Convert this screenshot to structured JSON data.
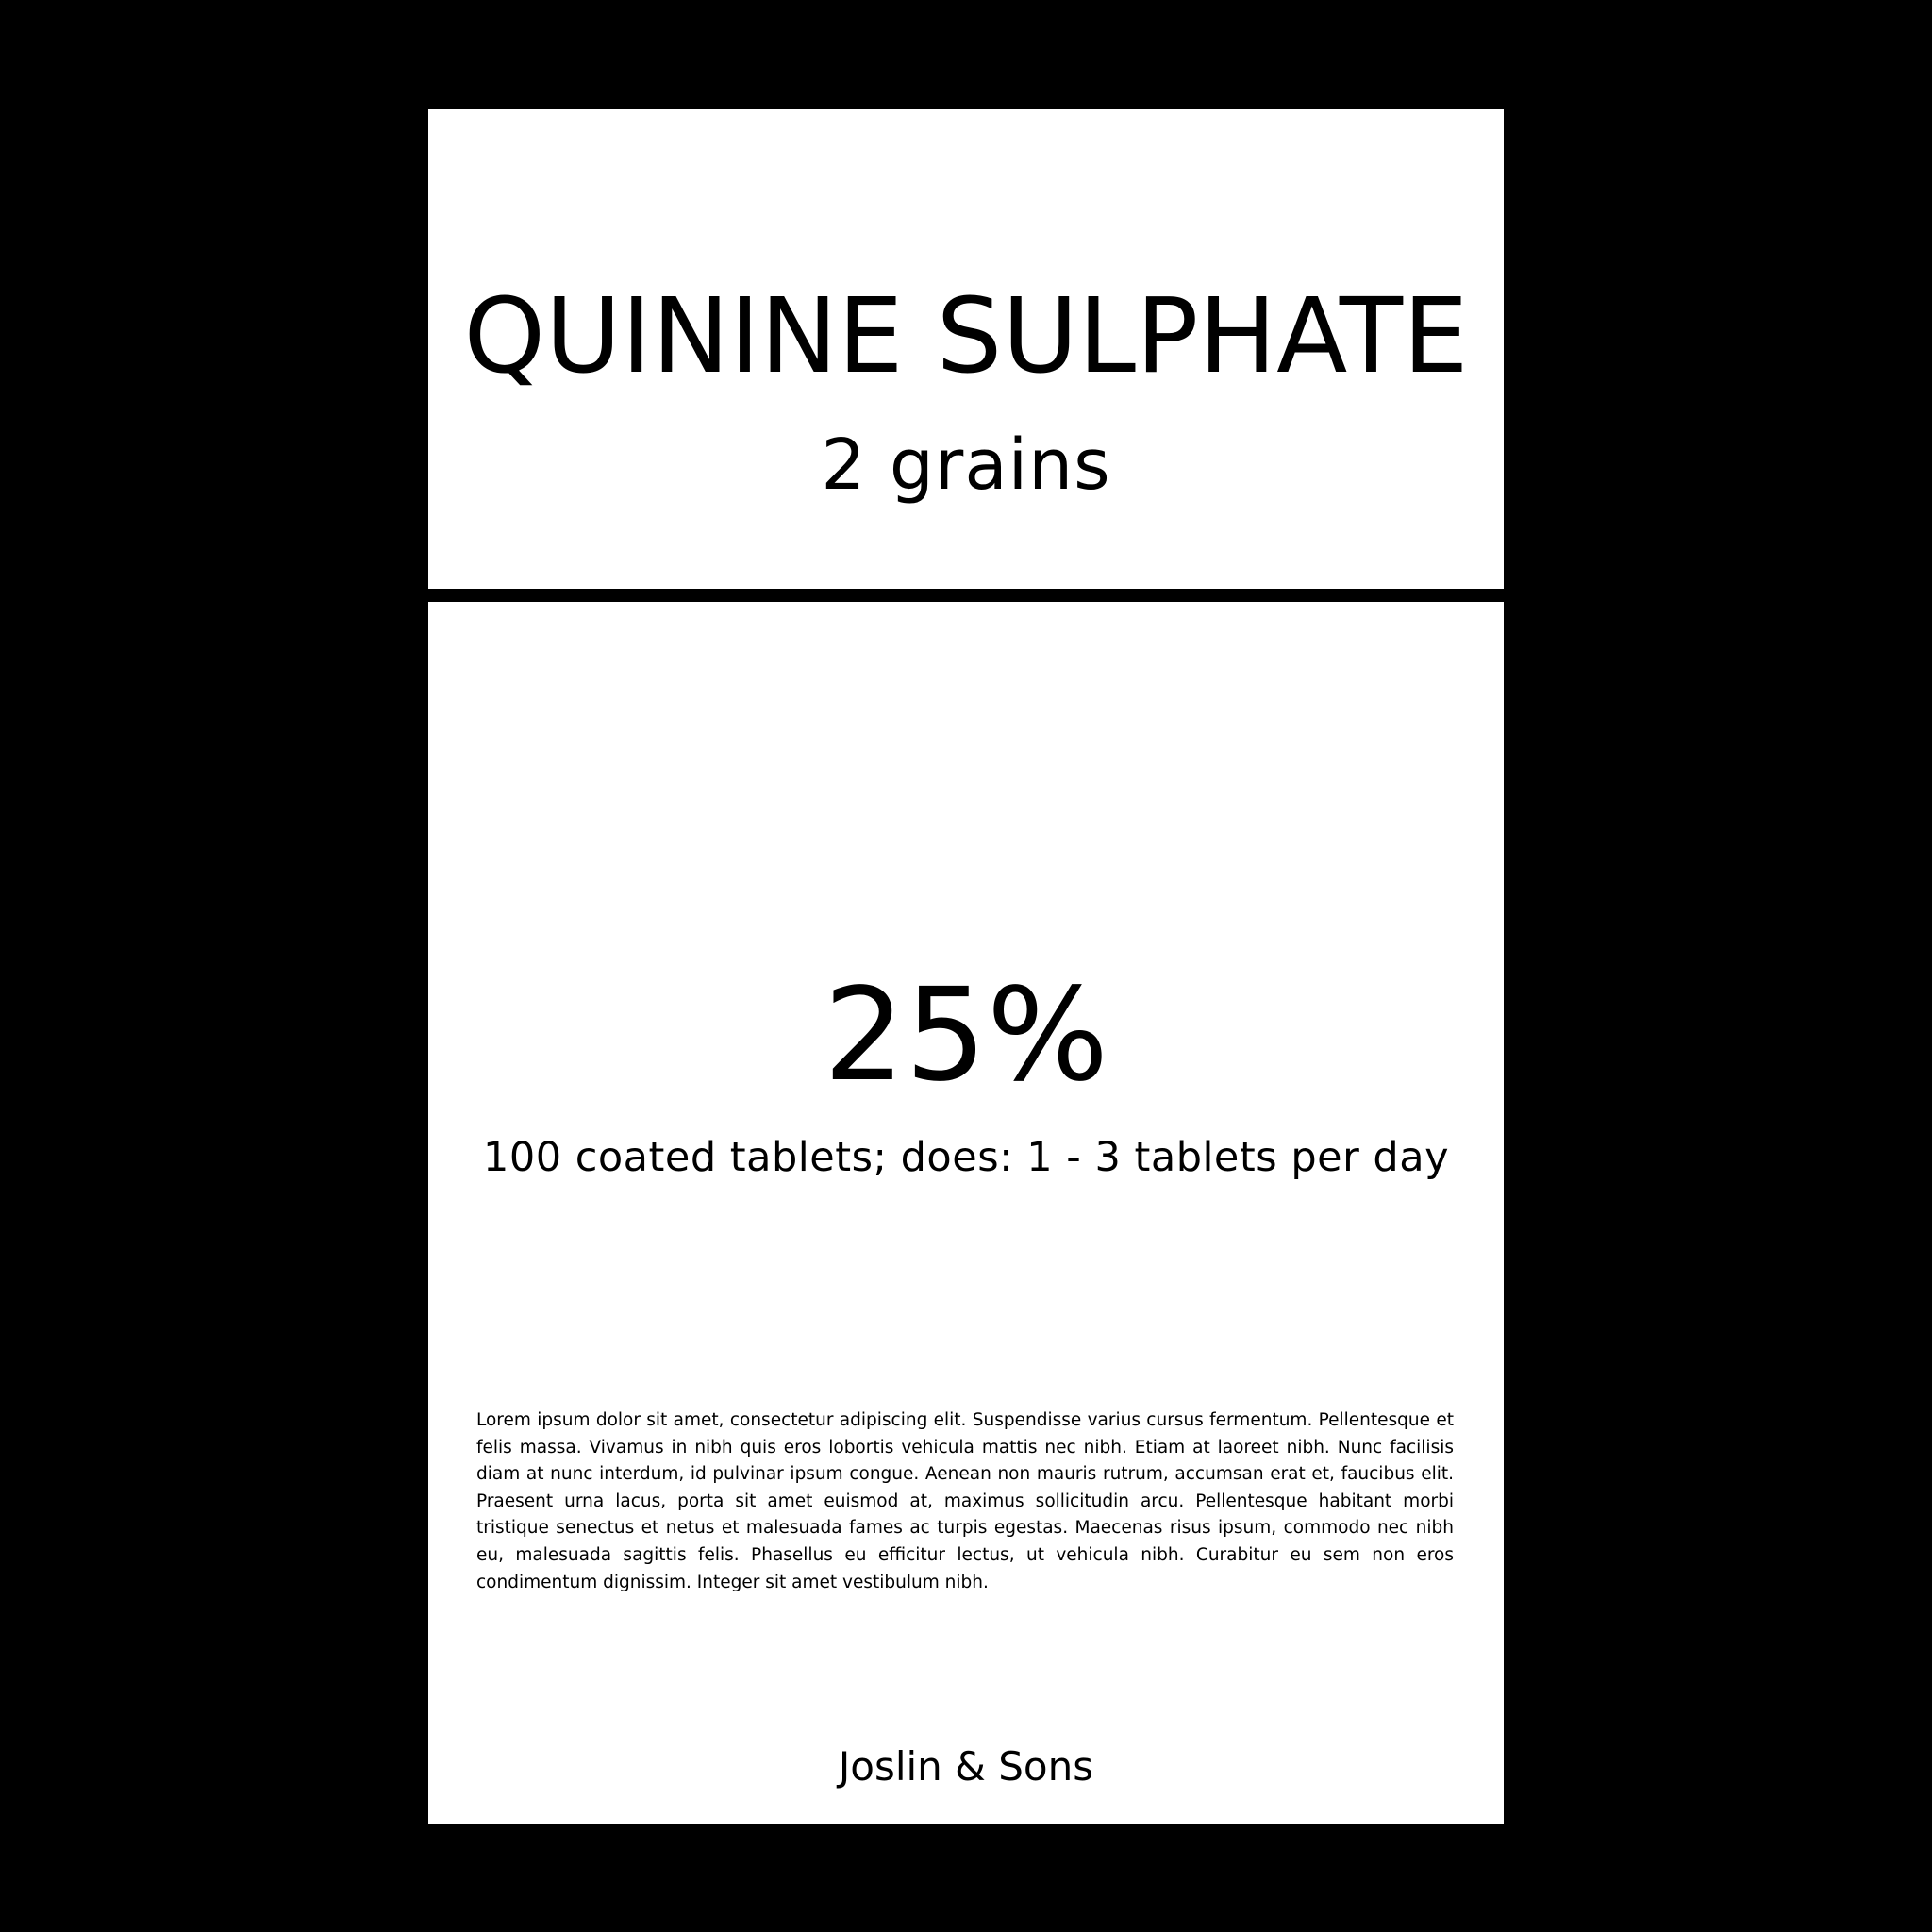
{
  "label": {
    "title": "QUININE SULPHATE",
    "strength": "2 grains",
    "percentage": "25%",
    "dosage": "100 coated tablets; does: 1 - 3 tablets per day",
    "description": "Lorem ipsum dolor sit amet, consectetur adipiscing elit. Suspendisse varius cursus fermentum. Pellentesque et felis massa. Vivamus in nibh quis eros lobortis vehicula mattis nec nibh. Etiam at laoreet nibh. Nunc facilisis diam at nunc interdum, id pulvinar ipsum congue. Aenean non mauris rutrum, accumsan erat et, faucibus elit. Praesent urna lacus, porta sit amet euismod at, maximus sollicitudin arcu. Pellentesque habitant morbi tristique senectus et netus et malesuada fames ac turpis egestas. Maecenas risus ipsum, commodo nec nibh eu, malesuada sagittis felis. Phasellus eu efficitur lectus, ut vehicula nibh. Curabitur eu sem non eros condimentum dignissim. Integer sit amet vestibulum nibh.",
    "maker": "Joslin & Sons"
  },
  "colors": {
    "background": "#000000",
    "panel": "#ffffff",
    "text": "#000000"
  }
}
